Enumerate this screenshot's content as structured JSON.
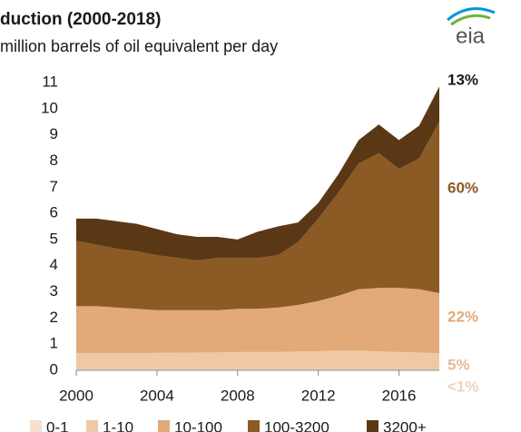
{
  "chart_data": {
    "type": "area",
    "stacked": true,
    "title": "duction (2000-2018)",
    "subtitle": "million barrels of oil equivalent per day",
    "logo_text": "eia",
    "x": [
      2000,
      2001,
      2002,
      2003,
      2004,
      2005,
      2006,
      2007,
      2008,
      2009,
      2010,
      2011,
      2012,
      2013,
      2014,
      2015,
      2016,
      2017,
      2018
    ],
    "xlim": [
      2000,
      2018
    ],
    "xticks": [
      2000,
      2004,
      2008,
      2012,
      2016
    ],
    "ylim": [
      0,
      11
    ],
    "yticks": [
      0,
      1,
      2,
      3,
      4,
      5,
      6,
      7,
      8,
      9,
      10,
      11
    ],
    "grid": false,
    "legend": "bottom",
    "series": [
      {
        "name": "0-1",
        "color": "#f5e0cf",
        "share_label": "<1%",
        "values": [
          0.03,
          0.03,
          0.03,
          0.03,
          0.03,
          0.03,
          0.03,
          0.03,
          0.03,
          0.03,
          0.03,
          0.03,
          0.03,
          0.03,
          0.03,
          0.03,
          0.03,
          0.03,
          0.03
        ]
      },
      {
        "name": "1-10",
        "color": "#efc9a6",
        "share_label": "5%",
        "values": [
          0.62,
          0.62,
          0.62,
          0.62,
          0.64,
          0.64,
          0.65,
          0.65,
          0.67,
          0.67,
          0.67,
          0.69,
          0.7,
          0.72,
          0.72,
          0.69,
          0.67,
          0.65,
          0.62
        ]
      },
      {
        "name": "10-100",
        "color": "#e1aa78",
        "share_label": "22%",
        "values": [
          1.8,
          1.8,
          1.75,
          1.7,
          1.63,
          1.63,
          1.62,
          1.62,
          1.65,
          1.65,
          1.7,
          1.78,
          1.92,
          2.1,
          2.35,
          2.43,
          2.45,
          2.42,
          2.3
        ]
      },
      {
        "name": "100-3200",
        "color": "#8c5a24",
        "share_label": "60%",
        "values": [
          2.5,
          2.35,
          2.25,
          2.2,
          2.1,
          2.0,
          1.9,
          2.0,
          1.95,
          1.95,
          2.0,
          2.4,
          3.15,
          3.95,
          4.8,
          5.15,
          4.55,
          5.0,
          6.55
        ]
      },
      {
        "name": "3200+",
        "color": "#5b3815",
        "share_label": "13%",
        "values": [
          0.85,
          1.0,
          1.05,
          1.05,
          1.0,
          0.9,
          0.9,
          0.8,
          0.7,
          1.0,
          1.1,
          0.75,
          0.6,
          0.7,
          0.9,
          1.1,
          1.1,
          1.25,
          1.35
        ]
      }
    ]
  }
}
